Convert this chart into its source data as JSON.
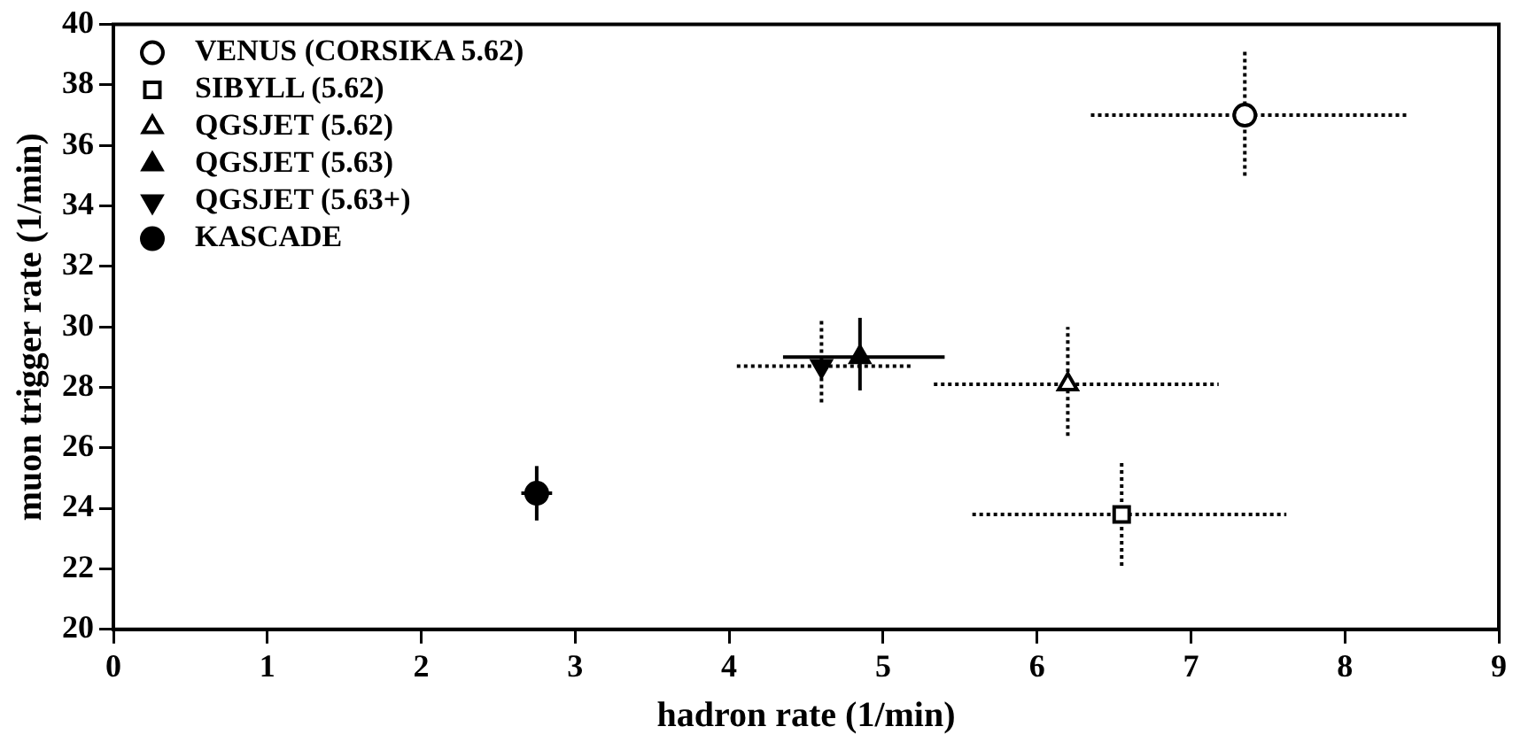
{
  "chart_data": {
    "type": "scatter",
    "xlabel": "hadron rate (1/min)",
    "ylabel": "muon trigger rate (1/min)",
    "xlim": [
      0,
      9
    ],
    "xticks": [
      0,
      1,
      2,
      3,
      4,
      5,
      6,
      7,
      8,
      9
    ],
    "ylim": [
      20,
      40
    ],
    "yticks": [
      20,
      22,
      24,
      26,
      28,
      30,
      32,
      34,
      36,
      38,
      40
    ],
    "grid": false,
    "legend": "top left",
    "series": [
      {
        "name": "VENUS (CORSIKA 5.62)",
        "color": "#000000",
        "colors": [
          "#ffffff"
        ],
        "marker": "circle",
        "line_style": "dotted",
        "x": [
          7.35
        ],
        "values": [
          37.0
        ],
        "errors": [
          [
            35.0,
            39.1
          ]
        ],
        "xerrors": [
          [
            6.35,
            8.4
          ]
        ]
      },
      {
        "name": "SIBYLL (5.62)",
        "color": "#000000",
        "colors": [
          "#ffffff"
        ],
        "marker": "square",
        "line_style": "dotted",
        "x": [
          6.55
        ],
        "values": [
          23.8
        ],
        "errors": [
          [
            22.1,
            25.6
          ]
        ],
        "xerrors": [
          [
            5.58,
            7.62
          ]
        ]
      },
      {
        "name": "QGSJET (5.62)",
        "color": "#000000",
        "colors": [
          "#ffffff"
        ],
        "marker": "triangle",
        "line_style": "dotted",
        "x": [
          6.2
        ],
        "values": [
          28.1
        ],
        "errors": [
          [
            26.4,
            30.0
          ]
        ],
        "xerrors": [
          [
            5.33,
            7.18
          ]
        ]
      },
      {
        "name": "QGSJET (5.63)",
        "color": "#000000",
        "colors": [
          "#000000"
        ],
        "marker": "triangle",
        "line_style": "solid",
        "x": [
          4.85
        ],
        "values": [
          29.0
        ],
        "errors": [
          [
            27.9,
            30.3
          ]
        ],
        "xerrors": [
          [
            4.35,
            5.4
          ]
        ]
      },
      {
        "name": "QGSJET (5.63+)",
        "color": "#000000",
        "colors": [
          "#000000"
        ],
        "marker": "triangle-down",
        "line_style": "dotted",
        "x": [
          4.6
        ],
        "values": [
          28.7
        ],
        "errors": [
          [
            27.5,
            30.2
          ]
        ],
        "xerrors": [
          [
            4.05,
            5.2
          ]
        ]
      },
      {
        "name": "KASCADE",
        "color": "#000000",
        "colors": [
          "#000000"
        ],
        "marker": "circle",
        "line_style": "solid",
        "x": [
          2.75
        ],
        "values": [
          24.5
        ],
        "errors": [
          [
            23.6,
            25.4
          ]
        ],
        "xerrors": [
          [
            2.65,
            2.85
          ]
        ]
      }
    ]
  }
}
